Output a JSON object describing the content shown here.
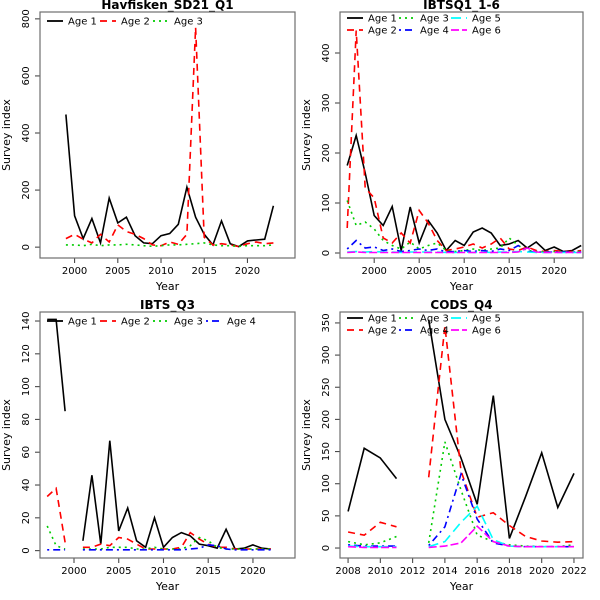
{
  "figure": {
    "background": "#ffffff",
    "box_color": "#6e6e6e",
    "tick_color": "#4a4a4a",
    "text_color": "#000000"
  },
  "chart_data": [
    {
      "type": "line",
      "title": "Havfisken_SD21_Q1",
      "xlabel": "Year",
      "ylabel": "Survey index",
      "x_ticks": [
        2000,
        2005,
        2010,
        2015,
        2020
      ],
      "y_ticks": [
        0,
        200,
        400,
        600,
        800
      ],
      "xlim": [
        1996.0,
        2025.5
      ],
      "ylim": [
        -38,
        824
      ],
      "legend_position": "topleft",
      "years": [
        1999,
        2000,
        2001,
        2002,
        2003,
        2004,
        2005,
        2006,
        2007,
        2008,
        2009,
        2010,
        2011,
        2012,
        2013,
        2014,
        2015,
        2016,
        2017,
        2018,
        2019,
        2020,
        2021,
        2022,
        2023
      ],
      "series": [
        {
          "name": "Age 1",
          "color": "#000000",
          "lty": "solid",
          "values": [
            465,
            110,
            30,
            100,
            15,
            172,
            85,
            105,
            40,
            15,
            12,
            40,
            48,
            80,
            210,
            105,
            45,
            8,
            92,
            12,
            2,
            22,
            25,
            28,
            145
          ]
        },
        {
          "name": "Age 2",
          "color": "#ff0000",
          "lty": "dashed",
          "values": [
            30,
            45,
            28,
            15,
            45,
            18,
            78,
            55,
            45,
            30,
            8,
            5,
            18,
            10,
            45,
            770,
            35,
            8,
            12,
            8,
            2,
            12,
            18,
            12,
            15
          ]
        },
        {
          "name": "Age 3",
          "color": "#00cc00",
          "lty": "dotted",
          "values": [
            8,
            8,
            5,
            10,
            5,
            8,
            8,
            10,
            8,
            5,
            3,
            5,
            8,
            8,
            10,
            12,
            15,
            8,
            5,
            5,
            3,
            5,
            5,
            5,
            8
          ]
        }
      ]
    },
    {
      "type": "line",
      "title": "IBTSQ1_1-6",
      "xlabel": "Year",
      "ylabel": "Survey index",
      "x_ticks": [
        2000,
        2005,
        2010,
        2015,
        2020
      ],
      "y_ticks": [
        0,
        100,
        200,
        300,
        400
      ],
      "xlim": [
        1996.2,
        2023.2
      ],
      "ylim": [
        -10,
        482
      ],
      "legend_position": "topleft",
      "years": [
        1997,
        1998,
        1999,
        2000,
        2001,
        2002,
        2003,
        2004,
        2005,
        2006,
        2007,
        2008,
        2009,
        2010,
        2011,
        2012,
        2013,
        2014,
        2015,
        2016,
        2017,
        2018,
        2019,
        2020,
        2021,
        2022,
        2023
      ],
      "series": [
        {
          "name": "Age 1",
          "color": "#000000",
          "lty": "solid",
          "values": [
            175,
            235,
            160,
            75,
            55,
            93,
            5,
            92,
            20,
            65,
            40,
            5,
            25,
            15,
            42,
            50,
            40,
            15,
            18,
            25,
            10,
            22,
            5,
            12,
            3,
            5,
            15
          ]
        },
        {
          "name": "Age 2",
          "color": "#ff0000",
          "lty": "dashed",
          "values": [
            50,
            445,
            130,
            110,
            30,
            20,
            40,
            20,
            85,
            60,
            25,
            5,
            8,
            12,
            18,
            10,
            18,
            30,
            8,
            5,
            12,
            5,
            3,
            5,
            3,
            3,
            5
          ]
        },
        {
          "name": "Age 3",
          "color": "#00cc00",
          "lty": "dotted",
          "values": [
            105,
            55,
            62,
            48,
            25,
            15,
            8,
            22,
            8,
            15,
            20,
            5,
            3,
            5,
            8,
            5,
            8,
            10,
            30,
            15,
            5,
            3,
            2,
            3,
            2,
            2,
            3
          ]
        },
        {
          "name": "Age 4",
          "color": "#0000ff",
          "lty": "dotdash",
          "values": [
            8,
            25,
            10,
            12,
            5,
            8,
            3,
            5,
            8,
            5,
            8,
            2,
            3,
            5,
            3,
            5,
            3,
            8,
            5,
            15,
            3,
            2,
            2,
            2,
            2,
            2,
            2
          ]
        },
        {
          "name": "Age 5",
          "color": "#00ffff",
          "lty": "longdash",
          "values": [
            2,
            3,
            2,
            3,
            2,
            2,
            1,
            2,
            2,
            2,
            2,
            1,
            1,
            2,
            1,
            2,
            1,
            2,
            2,
            3,
            2,
            1,
            1,
            1,
            1,
            1,
            1
          ]
        },
        {
          "name": "Age 6",
          "color": "#ff00ff",
          "lty": "twodash",
          "values": [
            1,
            2,
            1,
            1,
            1,
            1,
            1,
            1,
            1,
            1,
            1,
            1,
            1,
            1,
            1,
            1,
            1,
            1,
            1,
            2,
            10,
            2,
            1,
            1,
            1,
            1,
            1
          ]
        }
      ]
    },
    {
      "type": "line",
      "title": "IBTS_Q3",
      "xlabel": "Year",
      "ylabel": "Survey index",
      "x_ticks": [
        2000,
        2005,
        2010,
        2015,
        2020
      ],
      "y_ticks": [
        0,
        20,
        40,
        60,
        80,
        100,
        120,
        140
      ],
      "xlim": [
        1996.2,
        2024.7
      ],
      "ylim": [
        -4.5,
        145.5
      ],
      "legend_position": "topleft",
      "years": [
        1997,
        1998,
        1999,
        2000,
        2001,
        2002,
        2003,
        2004,
        2005,
        2006,
        2007,
        2008,
        2009,
        2010,
        2011,
        2012,
        2013,
        2014,
        2015,
        2016,
        2017,
        2018,
        2019,
        2020,
        2021,
        2022
      ],
      "series": [
        {
          "name": "Age 1",
          "color": "#000000",
          "lty": "solid",
          "values": [
            141,
            141,
            85,
            null,
            6,
            46,
            4,
            67,
            12,
            26,
            6,
            2,
            20,
            2,
            8,
            11,
            9,
            4,
            3,
            1.5,
            13,
            1,
            1.5,
            3.5,
            1.5,
            1
          ]
        },
        {
          "name": "Age 2",
          "color": "#ff0000",
          "lty": "dashed",
          "values": [
            33,
            38,
            5,
            null,
            2,
            2,
            4,
            3,
            8,
            7,
            4,
            1,
            1,
            1,
            1,
            2,
            11,
            7,
            4,
            2,
            2,
            1,
            1,
            1,
            1,
            1
          ]
        },
        {
          "name": "Age 3",
          "color": "#00cc00",
          "lty": "dotted",
          "values": [
            15,
            3,
            1,
            null,
            1,
            1,
            1,
            2,
            2,
            2,
            1,
            1,
            2,
            1,
            1,
            1,
            3,
            8,
            6,
            2,
            1,
            1,
            1,
            1,
            1,
            1
          ]
        },
        {
          "name": "Age 4",
          "color": "#0000ff",
          "lty": "dotdash",
          "values": [
            0.5,
            0.5,
            0.5,
            null,
            0.5,
            0.5,
            0.5,
            0.5,
            0.5,
            0.5,
            0.5,
            0.5,
            0.5,
            0.5,
            0.5,
            0.5,
            1,
            1.5,
            3.5,
            3,
            1,
            0.5,
            0.5,
            0.5,
            0.5,
            0.5
          ]
        }
      ]
    },
    {
      "type": "line",
      "title": "CODS_Q4",
      "xlabel": "Year",
      "ylabel": "Survey index",
      "x_ticks": [
        2008,
        2010,
        2012,
        2014,
        2016,
        2018,
        2020,
        2022
      ],
      "y_ticks": [
        0,
        50,
        100,
        150,
        200,
        250,
        300,
        350
      ],
      "xlim": [
        2007.5,
        2022.56
      ],
      "ylim": [
        -15.5,
        367
      ],
      "legend_position": "topleft",
      "years": [
        2008,
        2009,
        2010,
        2011,
        2012,
        2013,
        2014,
        2015,
        2016,
        2017,
        2018,
        2019,
        2020,
        2021,
        2022
      ],
      "series": [
        {
          "name": "Age 1",
          "color": "#000000",
          "lty": "solid",
          "values": [
            57,
            155,
            140,
            108,
            null,
            355,
            200,
            140,
            68,
            237,
            15,
            80,
            148,
            63,
            116
          ]
        },
        {
          "name": "Age 2",
          "color": "#ff0000",
          "lty": "dashed",
          "values": [
            25,
            20,
            40,
            33,
            null,
            110,
            345,
            120,
            48,
            55,
            35,
            18,
            11,
            9,
            10
          ]
        },
        {
          "name": "Age 3",
          "color": "#00cc00",
          "lty": "dotted",
          "values": [
            10,
            5,
            8,
            18,
            null,
            8,
            165,
            90,
            20,
            10,
            5,
            3,
            2,
            2,
            5
          ]
        },
        {
          "name": "Age 4",
          "color": "#0000ff",
          "lty": "dotdash",
          "values": [
            5,
            3,
            3,
            3,
            null,
            4,
            33,
            115,
            45,
            8,
            3,
            2,
            2,
            2,
            2
          ]
        },
        {
          "name": "Age 5",
          "color": "#00ffff",
          "lty": "longdash",
          "values": [
            3,
            2,
            2,
            2,
            null,
            2,
            10,
            40,
            65,
            13,
            3,
            2,
            2,
            2,
            2
          ]
        },
        {
          "name": "Age 6",
          "color": "#ff00ff",
          "lty": "twodash",
          "values": [
            2,
            1,
            1,
            1,
            null,
            1,
            3,
            8,
            34,
            10,
            3,
            2,
            2,
            2,
            2
          ]
        }
      ]
    }
  ]
}
